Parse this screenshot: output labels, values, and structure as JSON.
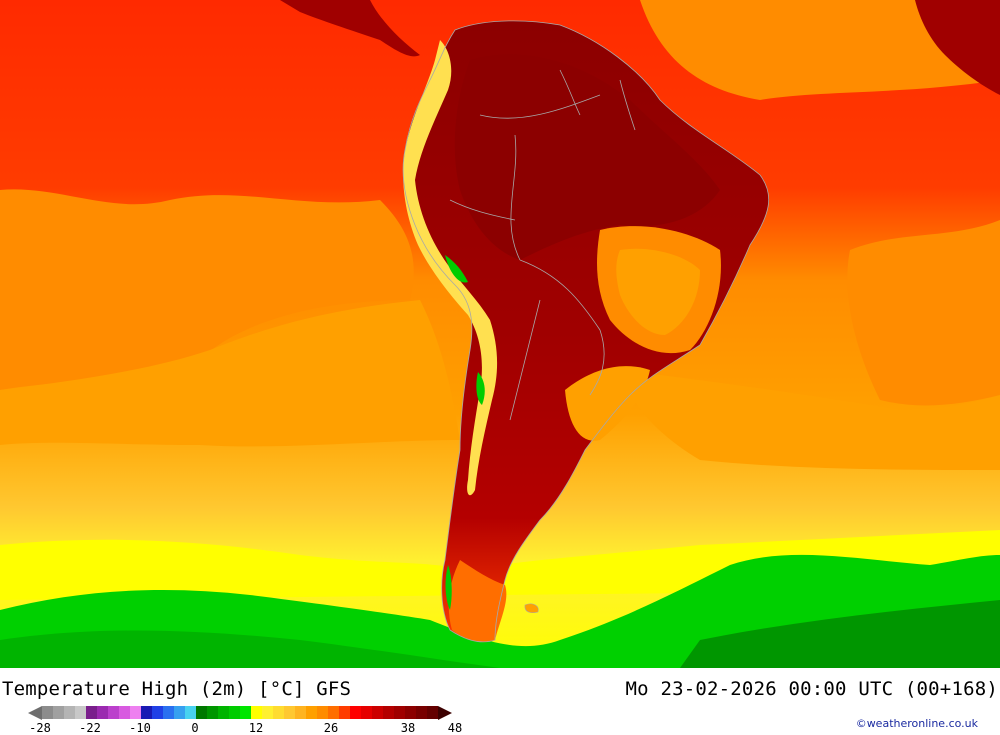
{
  "title": "Temperature High (2m) [°C] GFS",
  "valid_time": "Mo 23-02-2026 00:00 UTC (00+168)",
  "credit": "©weatheronline.co.uk",
  "legend": {
    "ticks": [
      "-28",
      "-22",
      "-10",
      "0",
      "12",
      "26",
      "38",
      "48"
    ],
    "colors": [
      "#8c8c8c",
      "#a0a0a0",
      "#b4b4b4",
      "#c8c8c8",
      "#7a1f8c",
      "#9b2ab0",
      "#bb40cc",
      "#d85ae0",
      "#ee80f0",
      "#1a1ab4",
      "#2040e6",
      "#2a70f0",
      "#36a0f0",
      "#48d2f0",
      "#007800",
      "#009600",
      "#00b400",
      "#00cc00",
      "#00e600",
      "#ffff00",
      "#fff030",
      "#ffdc30",
      "#ffc830",
      "#ffb420",
      "#ffa000",
      "#ff8c00",
      "#ff6e00",
      "#ff3c00",
      "#ff0000",
      "#e60000",
      "#cc0000",
      "#b40000",
      "#a00000",
      "#8c0000",
      "#780000",
      "#640000"
    ],
    "low_arrow_color": "#6e6e6e",
    "high_arrow_color": "#3c0000"
  },
  "map": {
    "ocean_north_color": "#ff2000",
    "ocean_mid_color": "#ff8c00",
    "ocean_south_color": "#ffc830",
    "cold_band_color": "#00d000",
    "land_hot_color": "#a00000",
    "andes_color": "#ffe050",
    "border_color": "#a8a8a8"
  }
}
